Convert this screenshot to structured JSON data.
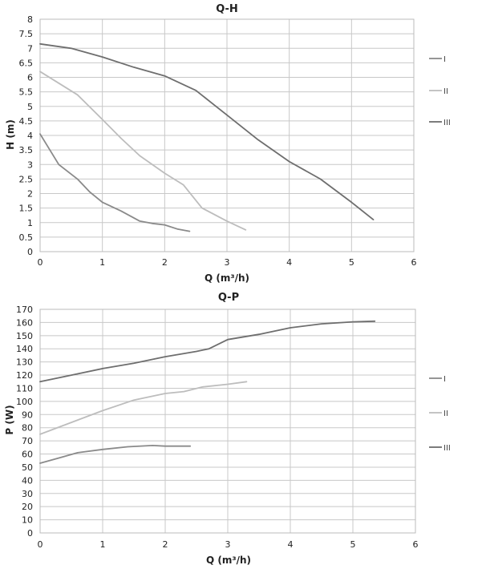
{
  "chart_data": [
    {
      "type": "line",
      "title": "Q-H",
      "xlabel": "Q (m³/h)",
      "ylabel": "H (m)",
      "xlim": [
        0,
        6
      ],
      "ylim": [
        0,
        8
      ],
      "xticks": [
        "0",
        "1",
        "2",
        "3",
        "4",
        "5",
        "6"
      ],
      "yticks": [
        "0",
        "0.5",
        "1",
        "1.5",
        "2",
        "2.5",
        "3",
        "3.5",
        "4",
        "4.5",
        "5",
        "5.5",
        "6",
        "6.5",
        "7",
        "7.5",
        "8"
      ],
      "grid": true,
      "legend": "right",
      "series": [
        {
          "name": "I",
          "color": "#8a8a8a",
          "x": [
            0,
            0.3,
            0.6,
            0.8,
            1.0,
            1.3,
            1.6,
            1.8,
            2.0,
            2.2,
            2.4
          ],
          "y": [
            4.05,
            3.0,
            2.5,
            2.05,
            1.7,
            1.4,
            1.05,
            0.97,
            0.92,
            0.78,
            0.7
          ]
        },
        {
          "name": "II",
          "color": "#bdbdbd",
          "x": [
            0,
            0.3,
            0.6,
            1.0,
            1.3,
            1.6,
            2.0,
            2.3,
            2.6,
            3.0,
            3.3
          ],
          "y": [
            6.2,
            5.8,
            5.4,
            4.55,
            3.9,
            3.3,
            2.7,
            2.3,
            1.5,
            1.05,
            0.75
          ]
        },
        {
          "name": "III",
          "color": "#6e6e6e",
          "x": [
            0,
            0.5,
            1.0,
            1.5,
            2.0,
            2.5,
            3.0,
            3.5,
            4.0,
            4.5,
            5.0,
            5.35
          ],
          "y": [
            7.15,
            7.0,
            6.7,
            6.35,
            6.05,
            5.55,
            4.7,
            3.85,
            3.1,
            2.5,
            1.7,
            1.1
          ]
        }
      ]
    },
    {
      "type": "line",
      "title": "Q-P",
      "xlabel": "Q (m³/h)",
      "ylabel": "P (W)",
      "xlim": [
        0,
        6
      ],
      "ylim": [
        0,
        170
      ],
      "xticks": [
        "0",
        "1",
        "2",
        "3",
        "4",
        "5",
        "6"
      ],
      "yticks": [
        "0",
        "10",
        "20",
        "30",
        "40",
        "50",
        "60",
        "70",
        "80",
        "90",
        "100",
        "110",
        "120",
        "130",
        "140",
        "150",
        "160",
        "170"
      ],
      "grid": true,
      "legend": "right",
      "series": [
        {
          "name": "I",
          "color": "#8a8a8a",
          "x": [
            0,
            0.3,
            0.6,
            1.0,
            1.4,
            1.8,
            2.0,
            2.4
          ],
          "y": [
            53,
            57,
            61,
            63.5,
            65.5,
            66.5,
            66,
            66
          ]
        },
        {
          "name": "II",
          "color": "#bdbdbd",
          "x": [
            0,
            0.5,
            1.0,
            1.5,
            2.0,
            2.3,
            2.6,
            3.0,
            3.3
          ],
          "y": [
            75,
            84,
            93,
            101,
            106,
            107.5,
            111,
            113,
            115
          ]
        },
        {
          "name": "III",
          "color": "#6e6e6e",
          "x": [
            0,
            0.5,
            1.0,
            1.5,
            2.0,
            2.5,
            2.7,
            3.0,
            3.5,
            4.0,
            4.5,
            5.0,
            5.35
          ],
          "y": [
            115,
            120,
            125,
            129,
            134,
            138,
            140,
            147,
            151,
            156,
            159,
            160.5,
            161
          ]
        }
      ]
    }
  ]
}
